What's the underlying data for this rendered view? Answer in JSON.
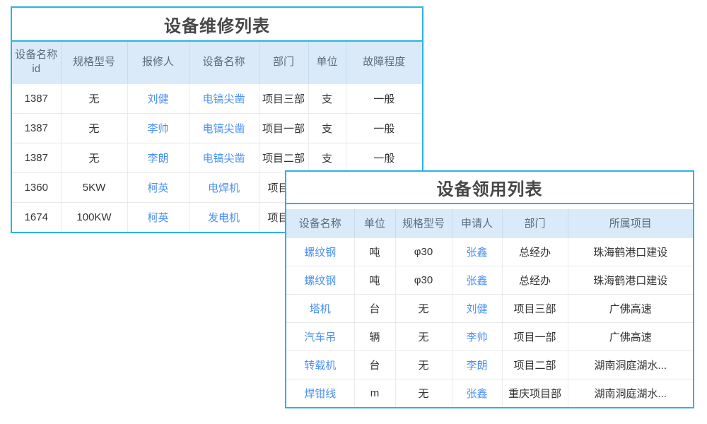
{
  "colors": {
    "accent_border": "#2bb2e9",
    "header_background": "#daeaf8",
    "header_text": "#5c6b7a",
    "title_text": "#474747",
    "body_text": "#333333",
    "link_text": "#4a90f5",
    "grid_line": "#e8e8e8"
  },
  "repair_table": {
    "title": "设备维修列表",
    "columns": [
      "设备名称id",
      "规格型号",
      "报修人",
      "设备名称",
      "部门",
      "单位",
      "故障程度"
    ],
    "link_columns": [
      2,
      3
    ],
    "rows": [
      [
        "1387",
        "无",
        "刘健",
        "电镐尖凿",
        "项目三部",
        "支",
        "一般"
      ],
      [
        "1387",
        "无",
        "李帅",
        "电镐尖凿",
        "项目一部",
        "支",
        "一般"
      ],
      [
        "1387",
        "无",
        "李朗",
        "电镐尖凿",
        "项目二部",
        "支",
        "一般"
      ],
      [
        "1360",
        "5KW",
        "柯英",
        "电焊机",
        "项目一",
        "",
        ""
      ],
      [
        "1674",
        "100KW",
        "柯英",
        "发电机",
        "项目一",
        "",
        ""
      ]
    ]
  },
  "requisition_table": {
    "title": "设备领用列表",
    "columns": [
      "设备名称",
      "单位",
      "规格型号",
      "申请人",
      "部门",
      "所属项目"
    ],
    "link_columns": [
      0,
      3
    ],
    "rows": [
      [
        "螺纹钢",
        "吨",
        "φ30",
        "张鑫",
        "总经办",
        "珠海鹤港口建设"
      ],
      [
        "螺纹钢",
        "吨",
        "φ30",
        "张鑫",
        "总经办",
        "珠海鹤港口建设"
      ],
      [
        "塔机",
        "台",
        "无",
        "刘健",
        "项目三部",
        "广佛高速"
      ],
      [
        "汽车吊",
        "辆",
        "无",
        "李帅",
        "项目一部",
        "广佛高速"
      ],
      [
        "转载机",
        "台",
        "无",
        "李朗",
        "项目二部",
        "湖南洞庭湖水..."
      ],
      [
        "焊钳线",
        "m",
        "无",
        "张鑫",
        "重庆项目部",
        "湖南洞庭湖水..."
      ]
    ]
  }
}
